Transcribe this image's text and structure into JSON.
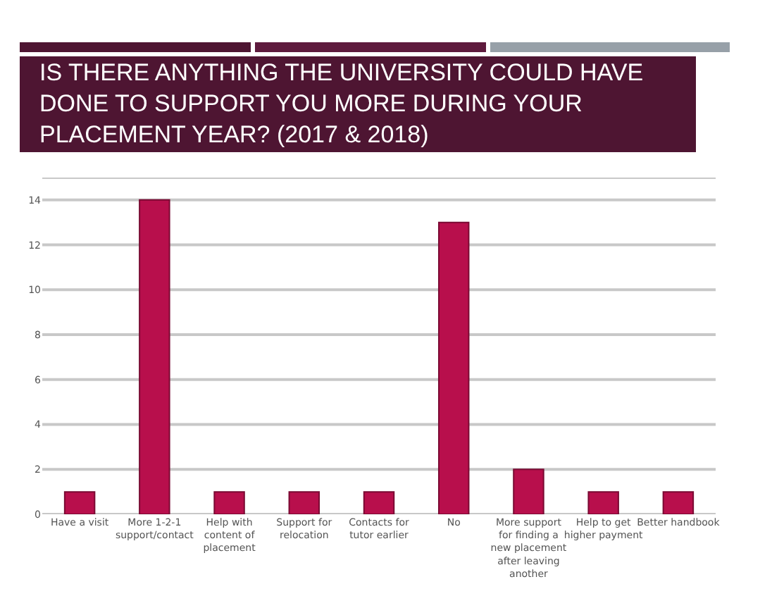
{
  "chart_data": {
    "type": "bar",
    "title": "IS THERE ANYTHING THE UNIVERSITY COULD HAVE DONE TO SUPPORT YOU MORE DURING YOUR PLACEMENT YEAR?   (2017 & 2018)",
    "categories": [
      "Have a visit",
      "More 1-2-1 support/contact",
      "Help with content of placement",
      "Support for relocation",
      "Contacts for tutor earlier",
      "No",
      "More support for finding a new placement after leaving another",
      "Help to get higher payment",
      "Better handbook"
    ],
    "values": [
      1,
      14,
      1,
      1,
      1,
      13,
      2,
      1,
      1
    ],
    "color": "#b80f4c",
    "ylim": [
      0,
      15
    ],
    "yticks": [
      0,
      2,
      4,
      6,
      8,
      10,
      12,
      14,
      {
        "value": 15,
        "label": null
      }
    ],
    "grid": "y"
  }
}
